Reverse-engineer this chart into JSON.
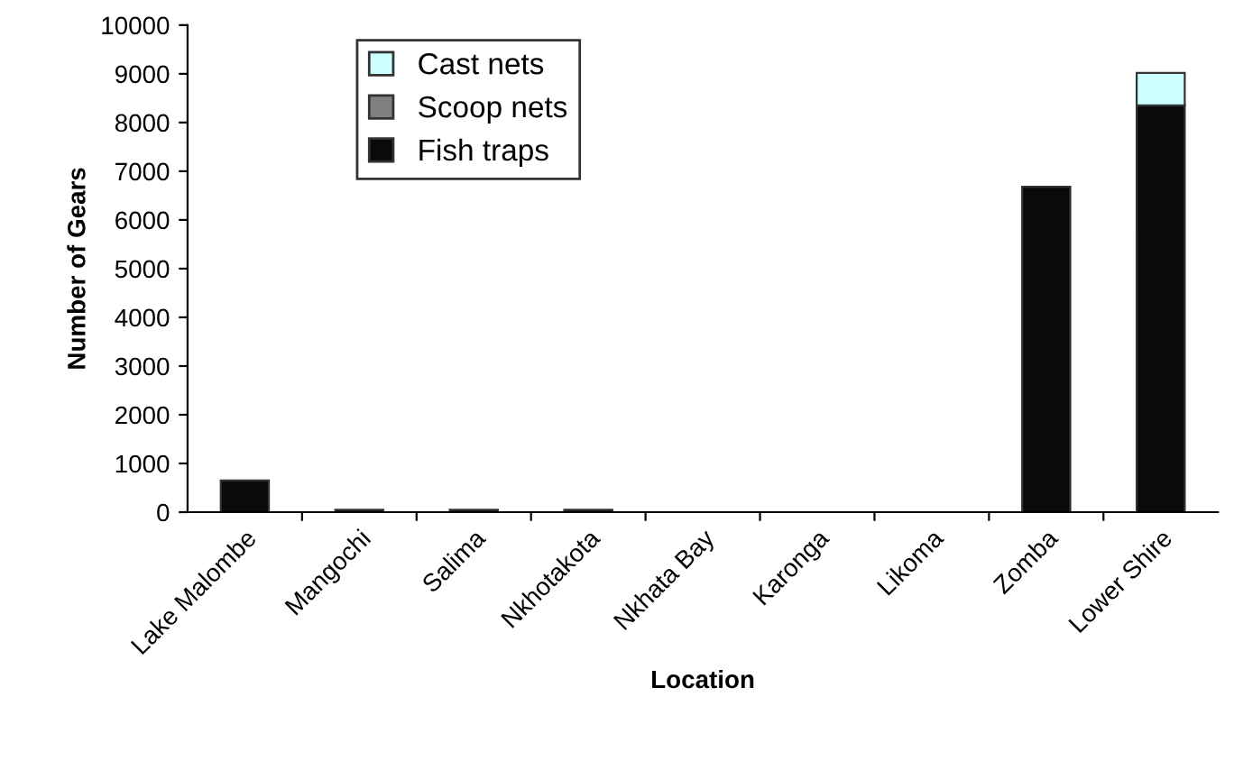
{
  "chart_data": {
    "type": "bar",
    "stacked": true,
    "xlabel": "Location",
    "ylabel": "Number of Gears",
    "categories": [
      "Lake Malombe",
      "Mangochi",
      "Salima",
      "Nkhotakota",
      "Nkhata Bay",
      "Karonga",
      "Likoma",
      "Zomba",
      "Lower Shire"
    ],
    "series": [
      {
        "name": "Fish traps",
        "color": "#0a0a0a",
        "values": [
          650,
          50,
          50,
          50,
          0,
          0,
          0,
          6680,
          8350
        ]
      },
      {
        "name": "Scoop nets",
        "color": "#808080",
        "values": [
          0,
          0,
          0,
          0,
          0,
          0,
          0,
          0,
          0
        ]
      },
      {
        "name": "Cast nets",
        "color": "#ccffff",
        "values": [
          0,
          0,
          0,
          0,
          0,
          0,
          0,
          0,
          670
        ]
      }
    ],
    "ylim": [
      0,
      10000
    ],
    "yticks": [
      0,
      1000,
      2000,
      3000,
      4000,
      5000,
      6000,
      7000,
      8000,
      9000,
      10000
    ],
    "grid": false,
    "legend": "top left"
  }
}
